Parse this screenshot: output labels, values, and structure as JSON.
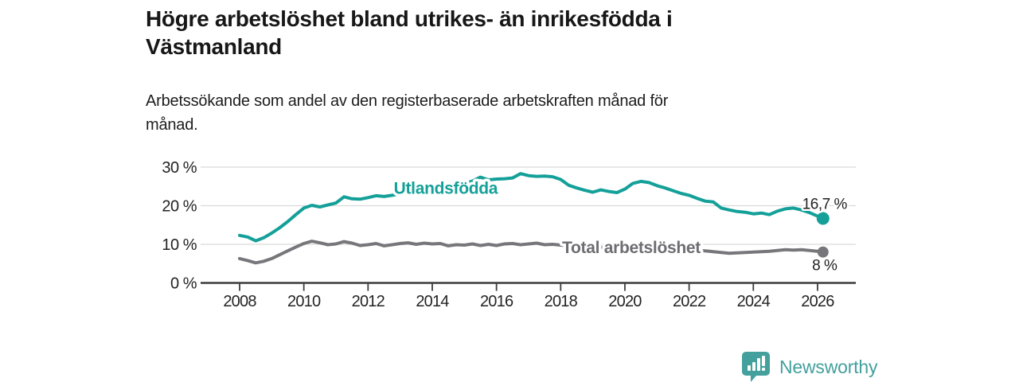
{
  "title_lines": [
    "Högre arbetslöshet bland utrikes- än inrikesfödda i",
    "Västmanland"
  ],
  "subtitle_lines": [
    "Arbetssökande som andel av den registerbaserade arbetskraften månad för",
    "månad."
  ],
  "chart_data": {
    "type": "line",
    "title": "Högre arbetslöshet bland utrikes- än inrikesfödda i Västmanland",
    "subtitle": "Arbetssökande som andel av den registerbaserade arbetskraften månad för månad.",
    "xlabel": "",
    "ylabel": "",
    "x_start": 2008.0,
    "x_step": 0.25,
    "x_end": 2026.17,
    "xlim": [
      2007.0,
      2027.2
    ],
    "ylim": [
      0,
      32
    ],
    "grid": "horizontal",
    "legend": "inline-labels",
    "x_axis_ticks": [
      2008,
      2010,
      2012,
      2014,
      2016,
      2018,
      2020,
      2022,
      2024,
      2026
    ],
    "y_axis_ticks": [
      {
        "value": 0,
        "label": "0 %"
      },
      {
        "value": 10,
        "label": "10 %"
      },
      {
        "value": 20,
        "label": "20 %"
      },
      {
        "value": 30,
        "label": "30 %"
      }
    ],
    "series": [
      {
        "name": "Utlandsfödda",
        "color": "#14a099",
        "label_x": 2014.42,
        "label_y": 24.5,
        "end_label": "16,7 %",
        "end_label_pos": "above",
        "end_value": 16.7,
        "values": [
          12.3,
          11.9,
          10.9,
          11.7,
          12.9,
          14.3,
          15.9,
          17.7,
          19.4,
          20.1,
          19.7,
          20.2,
          20.7,
          22.3,
          21.8,
          21.7,
          22.1,
          22.6,
          22.4,
          22.7,
          23.1,
          23.4,
          23.2,
          23.8,
          24.2,
          24.5,
          24.4,
          25.1,
          25.7,
          26.4,
          27.4,
          26.7,
          26.9,
          27.0,
          27.2,
          28.3,
          27.8,
          27.6,
          27.7,
          27.5,
          26.8,
          25.3,
          24.6,
          24.0,
          23.5,
          24.1,
          23.7,
          23.4,
          24.3,
          25.8,
          26.3,
          26.0,
          25.2,
          24.6,
          23.9,
          23.2,
          22.7,
          21.9,
          21.2,
          21.0,
          19.4,
          18.9,
          18.5,
          18.3,
          17.9,
          18.1,
          17.7,
          18.6,
          19.2,
          19.4,
          18.9,
          18.2,
          17.3,
          16.7
        ]
      },
      {
        "name": "Total arbetslöshet",
        "color": "#77777b",
        "label_color": "#6d6d72",
        "label_x": 2020.2,
        "label_y": 9.2,
        "end_label": "8 %",
        "end_label_pos": "below",
        "end_value": 8.0,
        "values": [
          6.3,
          5.8,
          5.2,
          5.6,
          6.3,
          7.3,
          8.3,
          9.3,
          10.2,
          10.8,
          10.4,
          9.9,
          10.1,
          10.7,
          10.3,
          9.7,
          9.9,
          10.2,
          9.6,
          9.9,
          10.2,
          10.4,
          10.0,
          10.3,
          10.1,
          10.2,
          9.6,
          9.9,
          9.8,
          10.1,
          9.7,
          10.0,
          9.7,
          10.1,
          10.2,
          9.9,
          10.1,
          10.3,
          9.9,
          10.0,
          9.8,
          9.6,
          9.4,
          9.2,
          9.1,
          9.3,
          9.1,
          9.0,
          9.2,
          9.6,
          9.7,
          9.4,
          9.2,
          9.0,
          8.8,
          8.6,
          8.5,
          8.4,
          8.3,
          8.1,
          7.9,
          7.7,
          7.8,
          7.9,
          8.0,
          8.1,
          8.2,
          8.4,
          8.6,
          8.5,
          8.6,
          8.4,
          8.2,
          8.0
        ]
      }
    ],
    "colors": {
      "grid": "#dadada",
      "axis": "#3d3d3d",
      "tick_text": "#232323",
      "end_label_text": "#1f1f1f"
    }
  },
  "branding": {
    "logo_text": "Newsworthy",
    "logo_icon": "newsworthy-speech-bubble-bar-chart",
    "color": "#43a09d"
  }
}
